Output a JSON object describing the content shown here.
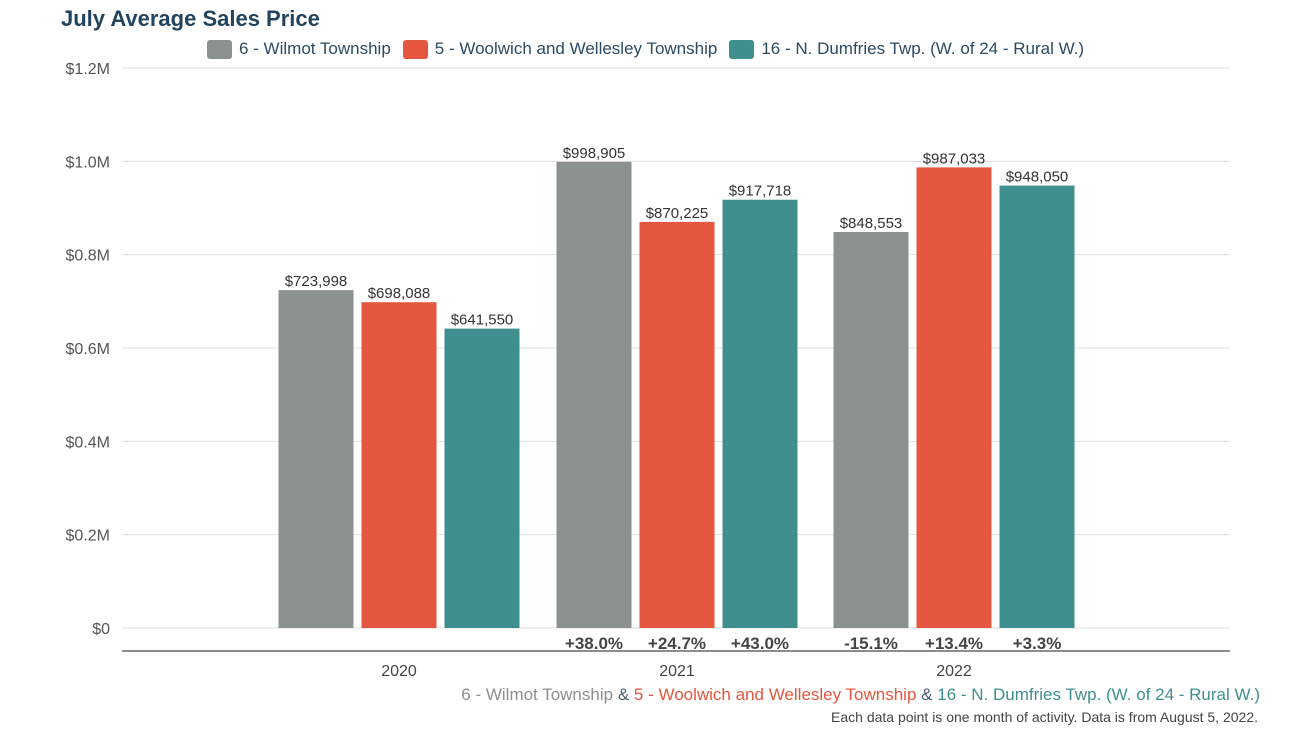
{
  "chart_data": {
    "type": "bar",
    "title": "July Average Sales Price",
    "categories": [
      "2020",
      "2021",
      "2022"
    ],
    "series": [
      {
        "name": "6 - Wilmot Township",
        "color": "#8a918f",
        "values": [
          723998,
          998905,
          848553
        ],
        "labels": [
          "$723,998",
          "$998,905",
          "$848,553"
        ],
        "changes": [
          "",
          "+38.0%",
          "-15.1%"
        ]
      },
      {
        "name": "5 - Woolwich and Wellesley Township",
        "color": "#e4573e",
        "values": [
          698088,
          870225,
          987033
        ],
        "labels": [
          "$698,088",
          "$870,225",
          "$987,033"
        ],
        "changes": [
          "",
          "+24.7%",
          "+13.4%"
        ]
      },
      {
        "name": "16 - N. Dumfries Twp. (W. of 24 - Rural W.)",
        "color": "#3f8f8e",
        "values": [
          641550,
          917718,
          948050
        ],
        "labels": [
          "$641,550",
          "$917,718",
          "$948,050"
        ],
        "changes": [
          "",
          "+43.0%",
          "+3.3%"
        ]
      }
    ],
    "y_ticks": [
      "$0",
      "$0.2M",
      "$0.4M",
      "$0.6M",
      "$0.8M",
      "$1.0M",
      "$1.2M"
    ],
    "ylim": [
      0,
      1200000
    ],
    "grid": true,
    "legend": "top"
  },
  "footer": {
    "series_names": [
      "6 - Wilmot Township",
      "5 - Woolwich and Wellesley Township",
      "16 - N. Dumfries Twp. (W. of 24 - Rural W.)"
    ],
    "separator": "&",
    "note": "Each data point is one month of activity. Data is from August 5, 2022."
  }
}
